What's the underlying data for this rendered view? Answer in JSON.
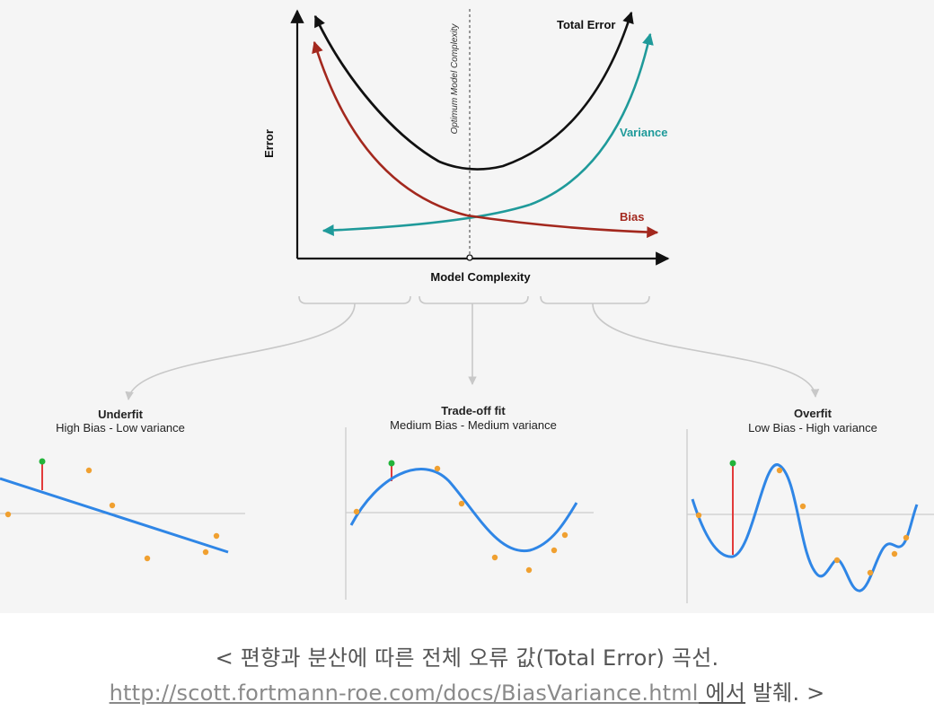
{
  "top_chart": {
    "y_axis_label": "Error",
    "x_axis_label": "Model Complexity",
    "optimum_label": "Optimum Model Complexity",
    "curves": {
      "total": {
        "label": "Total Error",
        "color": "#111111"
      },
      "variance": {
        "label": "Variance",
        "color": "#1f9a9a"
      },
      "bias": {
        "label": "Bias",
        "color": "#a3281e"
      }
    }
  },
  "panels": [
    {
      "title": "Underfit",
      "subtitle": "High Bias - Low variance"
    },
    {
      "title": "Trade-off fit",
      "subtitle": "Medium Bias - Medium variance"
    },
    {
      "title": "Overfit",
      "subtitle": "Low Bias - High variance"
    }
  ],
  "colors": {
    "fit_curve": "#2f86e6",
    "data_point": "#f0a030",
    "highlight_point": "#22b43a",
    "residual": "#e23b3b",
    "connector": "#c8c8c8"
  },
  "caption": {
    "line1": "< 편향과 분산에 따른 전체 오류 값(Total Error) 곡선.",
    "link_text": "http://scott.fortmann-roe.com/docs/BiasVariance.html",
    "suffix_underlined": " 에서",
    "suffix_rest": " 발췌. >"
  }
}
